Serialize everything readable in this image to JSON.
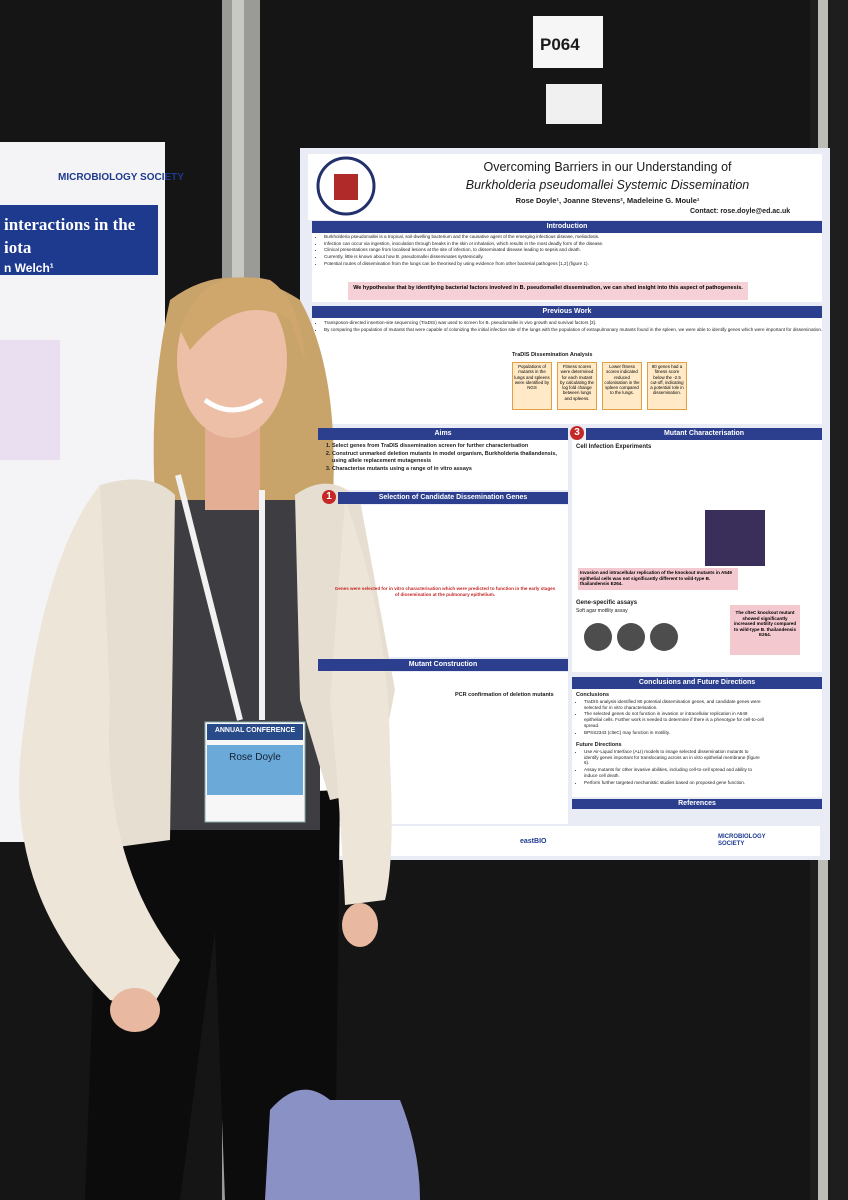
{
  "board_number": "P064",
  "left_poster": {
    "society": "MICROBIOLOGY SOCIETY",
    "title_line_1": "interactions in the",
    "title_line_2": "iota",
    "author": "n Welch¹"
  },
  "poster": {
    "title_line_1": "Overcoming Barriers in our Understanding of",
    "title_line_2": "Burkholderia pseudomallei Systemic Dissemination",
    "authors": "Rose Doyle¹, Joanne Stevens², Madeleine G. Moule¹",
    "contact": "Contact: rose.doyle@ed.ac.uk",
    "introduction": {
      "heading": "Introduction",
      "bullets": [
        "Burkholderia pseudomallei is a tropical, soil-dwelling bacterium and the causative agent of the emerging infectious disease, melioidosis.",
        "Infection can occur via ingestion, inoculation through breaks in the skin or inhalation, which results in the most deadly form of the disease.",
        "Clinical presentations range from localised lesions at the site of infection, to disseminated disease leading to sepsis and death.",
        "Currently, little is known about how B. pseudomallei disseminates systemically.",
        "Potential routes of dissemination from the lungs can be theorised by using evidence from other bacterial pathogens [1,2] (figure 1)."
      ],
      "hypothesis": "We hypothesise that by identifying bacterial factors involved in B. pseudomallei dissemination, we can shed insight into this aspect of pathogenesis."
    },
    "previous_work": {
      "heading": "Previous Work",
      "bullets": [
        "Transposon-directed insertion-site sequencing (TraDIS) was used to screen for B. pseudomallei in vivo growth and survival factors [3].",
        "By comparing the population of mutants that were capable of colonizing the initial infection site of the lungs with the population of extrapulmonary mutants found in the spleen, we were able to identify genes which were important for dissemination."
      ],
      "analysis_title": "TraDIS Dissemination Analysis",
      "steps": [
        "Populations of mutants in the lungs and spleens were identified by NGS",
        "Fitness scores were determined for each mutant by calculating the log fold change between lungs and spleens.",
        "Lower fitness scores indicated reduced colonisation in the spleen compared to the lungs.",
        "80 genes had a fitness score below the -2.5 cut-off, indicating a potential role in dissemination."
      ]
    },
    "aims": {
      "heading": "Aims",
      "items": [
        "Select genes from TraDIS dissemination screen for further characterisation",
        "Construct unmarked deletion mutants in model organism, Burkholderia thailandensis, using allele replacement mutagenesis",
        "Characterise mutants using a range of in vitro assays"
      ]
    },
    "selection": {
      "number": "1",
      "heading": "Selection of Candidate Dissemination Genes",
      "note": "Genes were selected for in vitro characterisation which were predicted to function in the early stages of dissemination at the pulmonary epithelium."
    },
    "mutant_construction": {
      "heading": "Mutant Construction",
      "pcr_title": "PCR confirmation of deletion mutants"
    },
    "characterisation": {
      "number": "3",
      "heading": "Mutant Characterisation",
      "sub_heading": "Cell Infection Experiments",
      "result": "Invasion and intracellular replication of the knockout mutants in A549 epithelial cells was not significantly different to wild-type B. thailandensis E264.",
      "assays_heading": "Gene-specific assays",
      "assay_name": "Soft agar motility assay",
      "motility_result": "The clteC knockout mutant showed significantly increased motility compared to wild-type B. thailandensis E264."
    },
    "conclusions": {
      "heading": "Conclusions and Future Directions",
      "conclusions_title": "Conclusions",
      "conclusions": [
        "TraDIS analysis identified 80 potential dissemination genes, and candidate genes were selected for in vitro characterisation.",
        "The selected genes do not function in invasion or intracellular replication in A549 epithelial cells. Further work is needed to determine if there is a phenotype for cell-to-cell spread.",
        "BPSS2343 (clteC) may function in motility."
      ],
      "future_title": "Future Directions",
      "future": [
        "Use Air-Liquid Interface (ALI) models to image selected dissemination mutants to identify genes important for translocating across an in vitro epithelial membrane (figure 6).",
        "Assay mutants for other invasive abilities, including cell-to-cell spread and ability to induce cell death.",
        "Perform further targeted mechanistic studies based on proposed gene function."
      ]
    },
    "references_heading": "References",
    "footer": {
      "logo_1": "eastBIO",
      "logo_2": "MICROBIOLOGY SOCIETY"
    }
  },
  "badge": {
    "event": "ANNUAL CONFERENCE",
    "name": "Rose Doyle"
  }
}
